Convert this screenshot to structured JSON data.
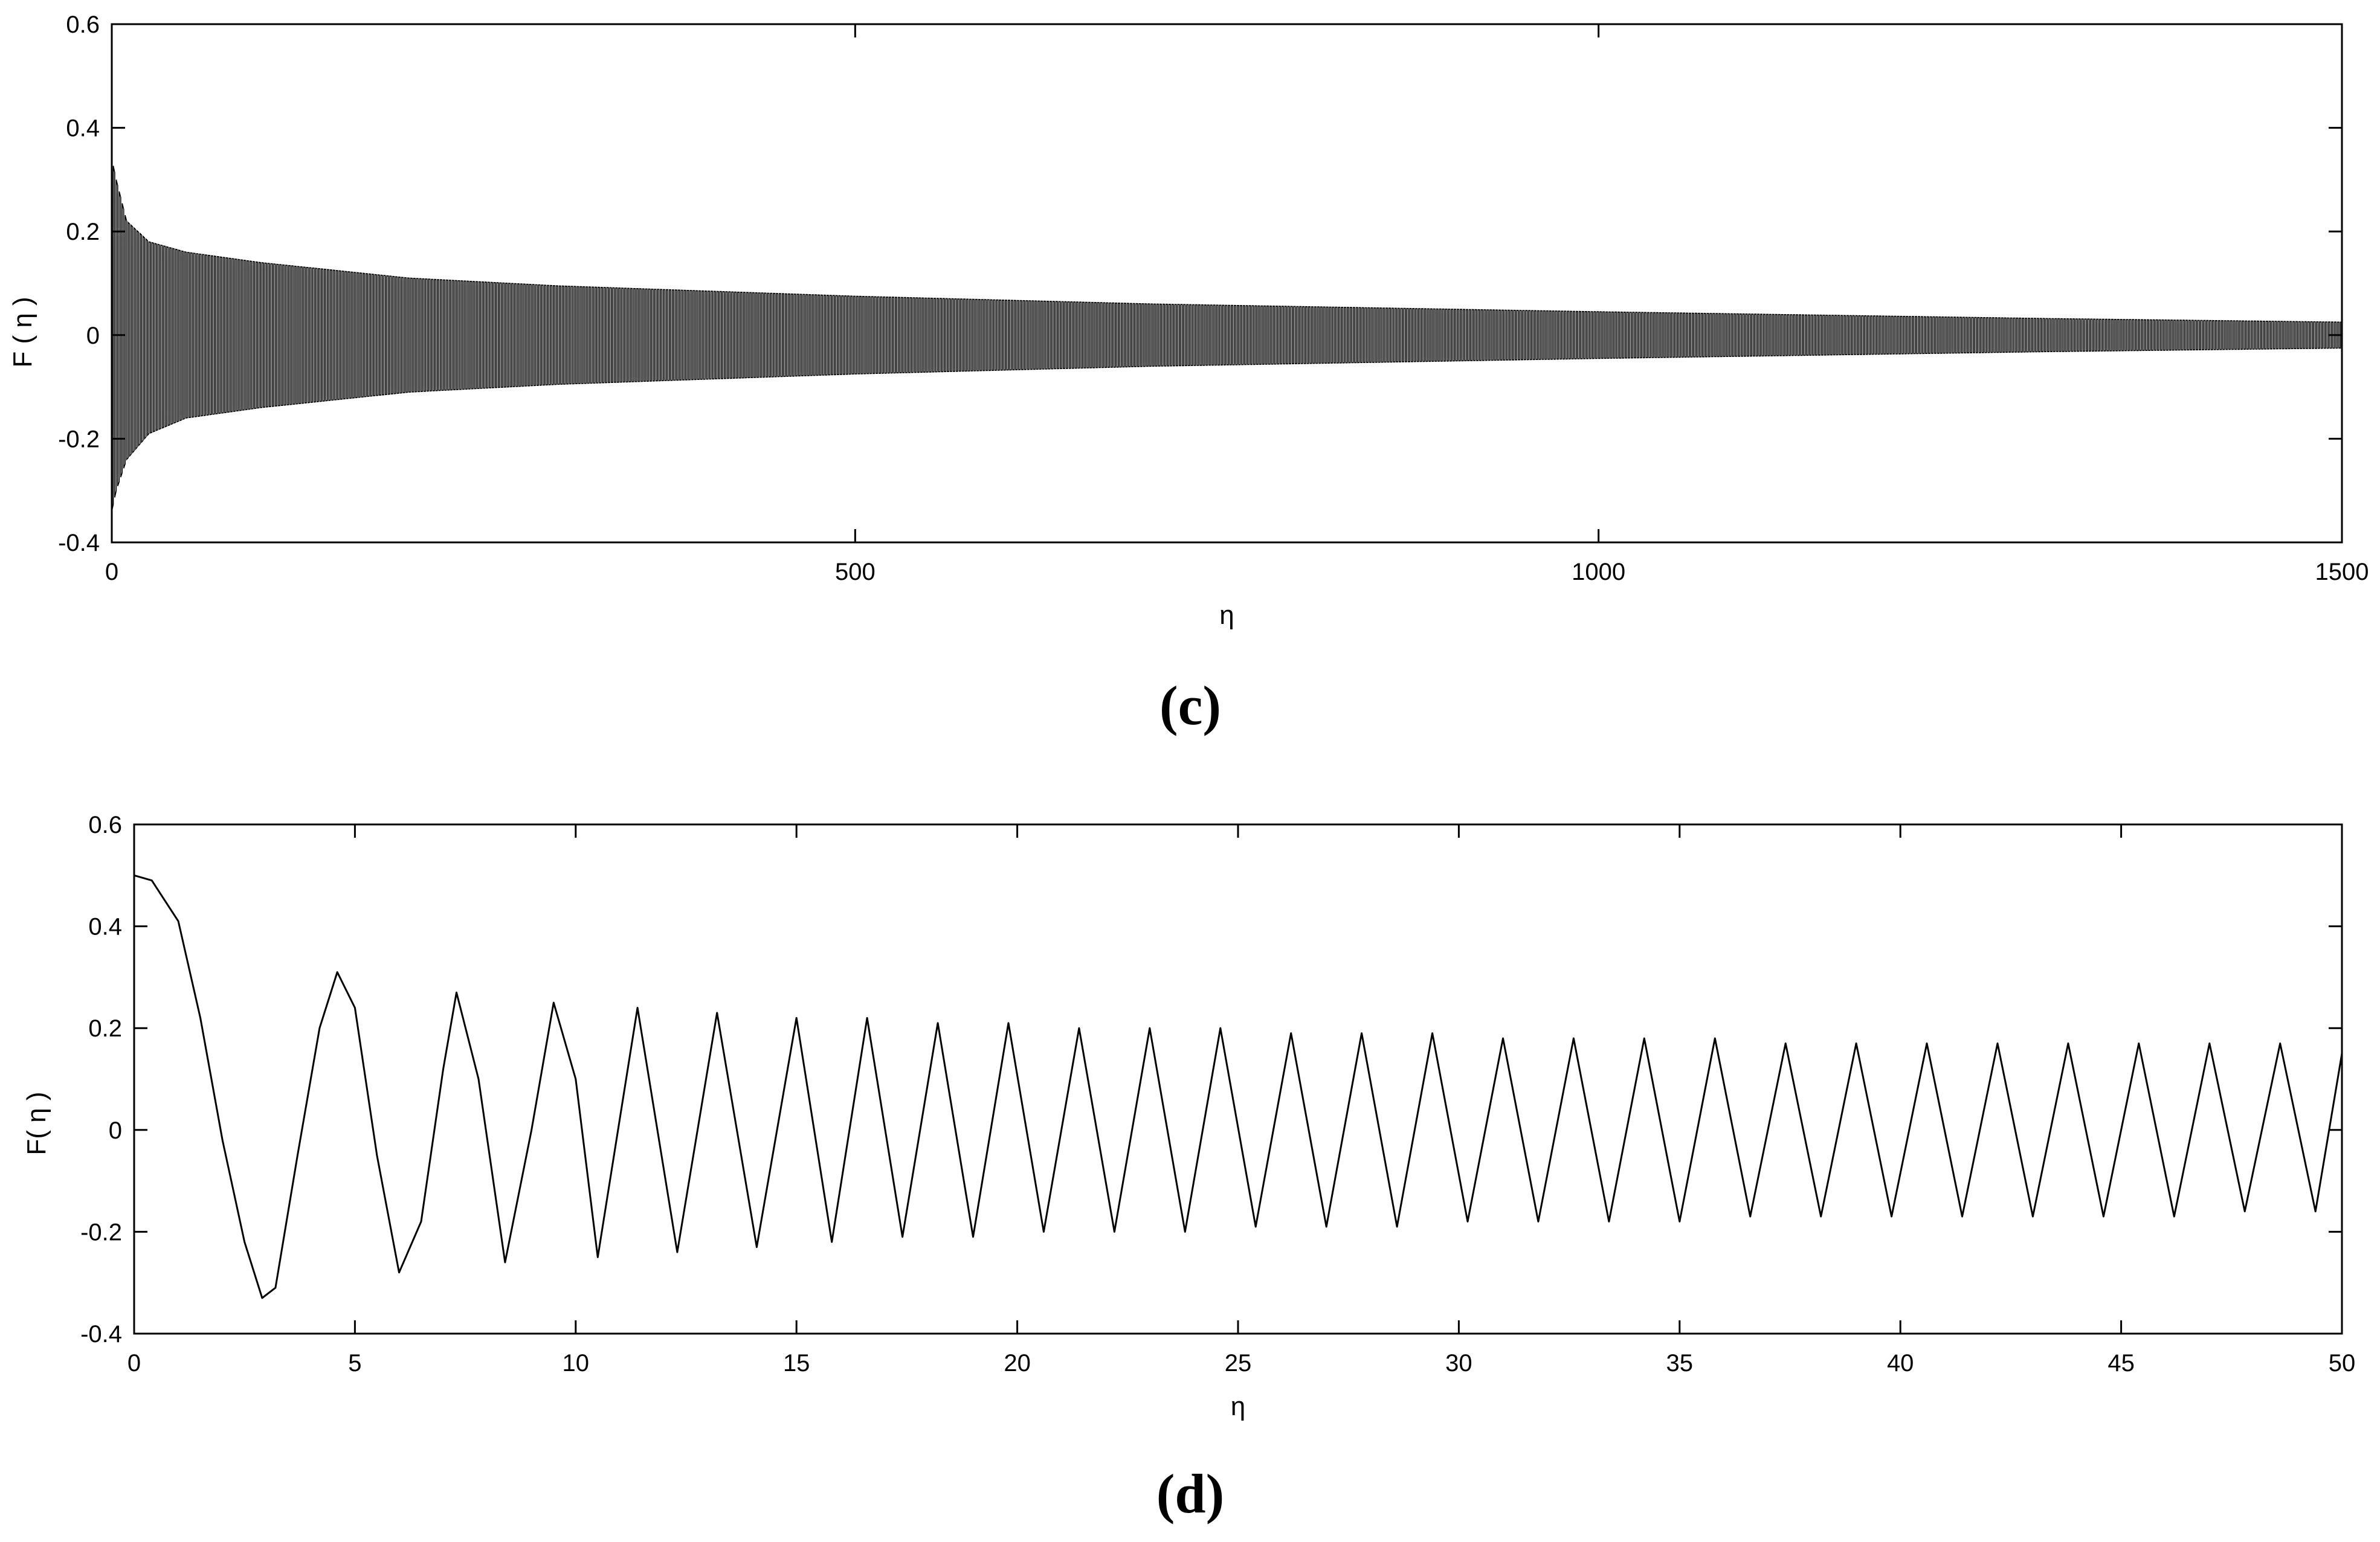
{
  "chart_data": [
    {
      "type": "line",
      "panel": "c",
      "xlabel": "η",
      "ylabel": "F ( η )",
      "xlim": [
        0,
        1500
      ],
      "ylim": [
        -0.4,
        0.6
      ],
      "xticks": [
        0,
        500,
        1000,
        1500
      ],
      "yticks": [
        -0.4,
        -0.2,
        0,
        0.2,
        0.4,
        0.6
      ],
      "grid": false,
      "series": [
        {
          "style": "dense oscillation between decaying envelope",
          "envelope_x": [
            0,
            3,
            10,
            25,
            50,
            100,
            200,
            300,
            500,
            700,
            1000,
            1300,
            1500
          ],
          "envelope_upper": [
            0.34,
            0.3,
            0.22,
            0.18,
            0.16,
            0.14,
            0.11,
            0.095,
            0.075,
            0.06,
            0.045,
            0.032,
            0.025
          ],
          "envelope_lower": [
            -0.34,
            -0.3,
            -0.24,
            -0.19,
            -0.16,
            -0.14,
            -0.11,
            -0.095,
            -0.075,
            -0.06,
            -0.045,
            -0.032,
            -0.025
          ]
        }
      ]
    },
    {
      "type": "line",
      "panel": "d",
      "xlabel": "η",
      "ylabel": "F( η )",
      "xlim": [
        0,
        50
      ],
      "ylim": [
        -0.4,
        0.6
      ],
      "xticks": [
        0,
        5,
        10,
        15,
        20,
        25,
        30,
        35,
        40,
        45,
        50
      ],
      "yticks": [
        -0.4,
        -0.2,
        0,
        0.2,
        0.4,
        0.6
      ],
      "grid": false,
      "series": [
        {
          "x": [
            0,
            0.4,
            1,
            1.5,
            2,
            2.5,
            2.9,
            3.2,
            3.7,
            4.2,
            4.6,
            5,
            5.5,
            6,
            6.5,
            7,
            7.3,
            7.8,
            8.4,
            9,
            9.5,
            10,
            10.5,
            11.4,
            12.3,
            13.2,
            14.1,
            15,
            15.8,
            16.6,
            17.4,
            18.2,
            19,
            19.8,
            20.6,
            21.4,
            22.2,
            23,
            23.8,
            24.6,
            25.4,
            26.2,
            27,
            27.8,
            28.6,
            29.4,
            30.2,
            31,
            31.8,
            32.6,
            33.4,
            34.2,
            35,
            35.8,
            36.6,
            37.4,
            38.2,
            39,
            39.8,
            40.6,
            41.4,
            42.2,
            43,
            43.8,
            44.6,
            45.4,
            46.2,
            47,
            47.8,
            48.6,
            49.4,
            50
          ],
          "y": [
            0.5,
            0.49,
            0.41,
            0.22,
            -0.02,
            -0.22,
            -0.33,
            -0.31,
            -0.05,
            0.2,
            0.31,
            0.24,
            -0.05,
            -0.28,
            -0.18,
            0.12,
            0.27,
            0.1,
            -0.26,
            0.0,
            0.25,
            0.1,
            -0.25,
            0.24,
            -0.24,
            0.23,
            -0.23,
            0.22,
            -0.22,
            0.22,
            -0.21,
            0.21,
            -0.21,
            0.21,
            -0.2,
            0.2,
            -0.2,
            0.2,
            -0.2,
            0.2,
            -0.19,
            0.19,
            -0.19,
            0.19,
            -0.19,
            0.19,
            -0.18,
            0.18,
            -0.18,
            0.18,
            -0.18,
            0.18,
            -0.18,
            0.18,
            -0.17,
            0.17,
            -0.17,
            0.17,
            -0.17,
            0.17,
            -0.17,
            0.17,
            -0.17,
            0.17,
            -0.17,
            0.17,
            -0.17,
            0.17,
            -0.16,
            0.17,
            -0.16,
            0.15
          ]
        }
      ]
    }
  ],
  "panel_labels": {
    "c": "(c)",
    "d": "(d)"
  }
}
